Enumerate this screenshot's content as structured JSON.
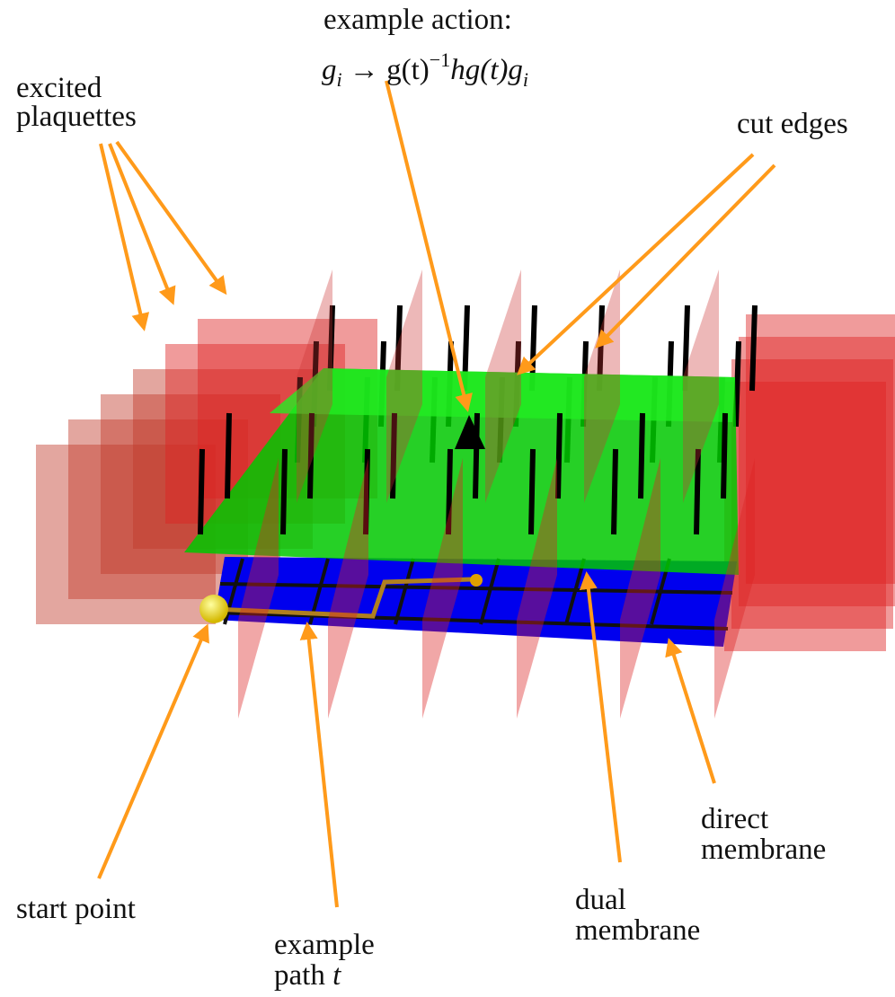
{
  "labels": {
    "action_title": "example action:",
    "formula": [
      "g",
      "i",
      " → g(t)",
      "−1",
      "hg(t)g",
      "i"
    ],
    "excited": [
      "excited",
      "plaquettes"
    ],
    "cut_edges": "cut edges",
    "start_point": "start point",
    "path": [
      "example",
      "path",
      "t"
    ],
    "dual": [
      "dual",
      "membrane"
    ],
    "direct": [
      "direct",
      "membrane"
    ]
  }
}
